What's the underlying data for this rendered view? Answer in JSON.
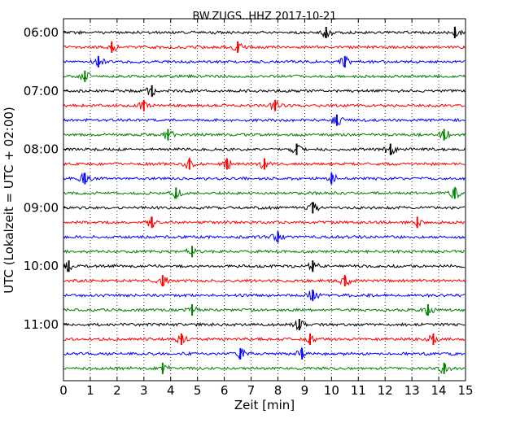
{
  "chart_data": {
    "type": "line",
    "subtype": "helicorder",
    "title": "BW.ZUGS..HHZ 2017-10-21",
    "xlabel": "Zeit  [min]",
    "ylabel": "UTC (Lokalzeit = UTC + 02:00)",
    "xlim": [
      0,
      15
    ],
    "x_ticks": [
      "0",
      "1",
      "2",
      "3",
      "4",
      "5",
      "6",
      "7",
      "8",
      "9",
      "10",
      "11",
      "12",
      "13",
      "14",
      "15"
    ],
    "y_tick_labels": [
      "06:00",
      "07:00",
      "08:00",
      "09:00",
      "10:00",
      "11:00"
    ],
    "grid": "vertical dotted lines at each minute",
    "row_colors": [
      "#000000",
      "#ff0000",
      "#0000ff",
      "#008000"
    ],
    "traces": [
      {
        "start": "06:00",
        "color": "#000000",
        "events": [
          9.8,
          14.6
        ]
      },
      {
        "start": "06:15",
        "color": "#ff0000",
        "events": [
          1.8,
          6.5
        ]
      },
      {
        "start": "06:30",
        "color": "#0000ff",
        "events": [
          1.3,
          10.5
        ]
      },
      {
        "start": "06:45",
        "color": "#008000",
        "events": [
          0.8
        ]
      },
      {
        "start": "07:00",
        "color": "#000000",
        "events": [
          3.3
        ]
      },
      {
        "start": "07:15",
        "color": "#ff0000",
        "events": [
          3.0,
          7.9
        ]
      },
      {
        "start": "07:30",
        "color": "#0000ff",
        "events": [
          10.2
        ]
      },
      {
        "start": "07:45",
        "color": "#008000",
        "events": [
          3.9,
          14.2
        ]
      },
      {
        "start": "08:00",
        "color": "#000000",
        "events": [
          8.7,
          12.2
        ]
      },
      {
        "start": "08:15",
        "color": "#ff0000",
        "events": [
          4.7,
          6.1,
          7.5
        ]
      },
      {
        "start": "08:30",
        "color": "#0000ff",
        "events": [
          0.8,
          10.0
        ]
      },
      {
        "start": "08:45",
        "color": "#008000",
        "events": [
          4.2,
          14.6
        ]
      },
      {
        "start": "09:00",
        "color": "#000000",
        "events": [
          9.3
        ]
      },
      {
        "start": "09:15",
        "color": "#ff0000",
        "events": [
          3.3,
          13.2
        ]
      },
      {
        "start": "09:30",
        "color": "#0000ff",
        "events": [
          8.0
        ]
      },
      {
        "start": "09:45",
        "color": "#008000",
        "events": [
          4.8
        ]
      },
      {
        "start": "10:00",
        "color": "#000000",
        "events": [
          0.2,
          9.3
        ]
      },
      {
        "start": "10:15",
        "color": "#ff0000",
        "events": [
          3.7,
          10.5
        ]
      },
      {
        "start": "10:30",
        "color": "#0000ff",
        "events": [
          9.3
        ]
      },
      {
        "start": "10:45",
        "color": "#008000",
        "events": [
          4.8,
          13.6
        ]
      },
      {
        "start": "11:00",
        "color": "#000000",
        "events": [
          8.8
        ]
      },
      {
        "start": "11:15",
        "color": "#ff0000",
        "events": [
          4.4,
          9.2,
          13.8
        ]
      },
      {
        "start": "11:30",
        "color": "#0000ff",
        "events": [
          6.6,
          8.9
        ]
      },
      {
        "start": "11:45",
        "color": "#008000",
        "events": [
          3.7,
          14.2
        ]
      }
    ]
  }
}
